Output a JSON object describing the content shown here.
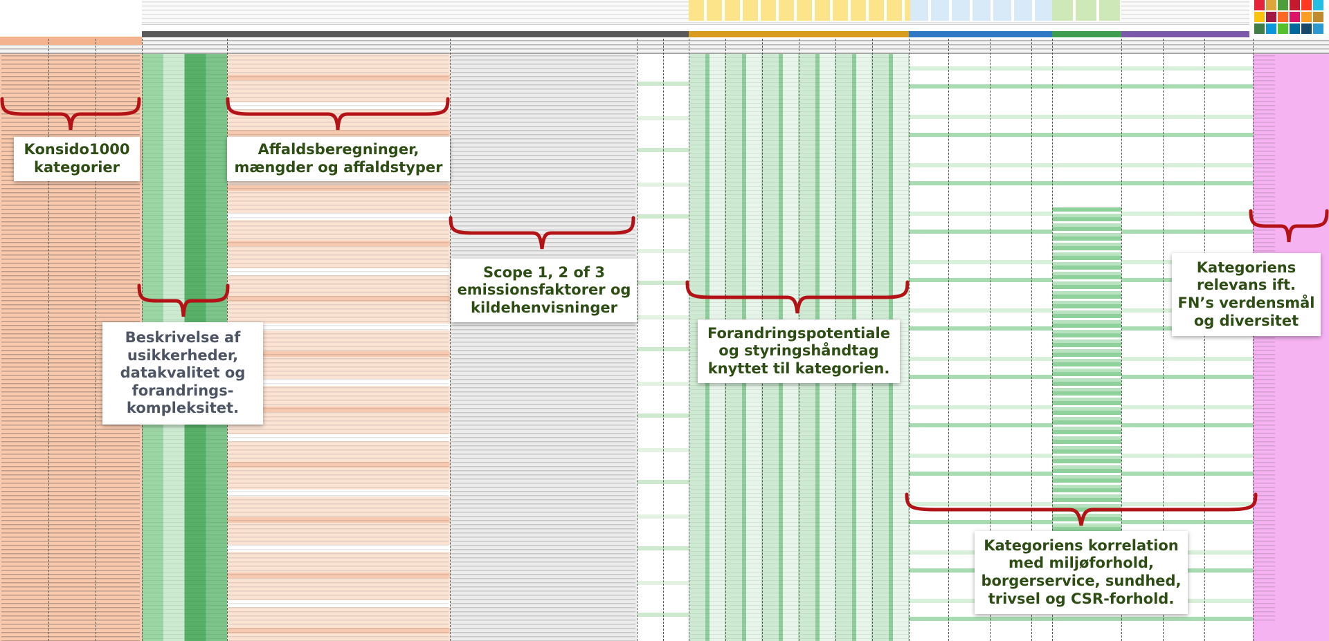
{
  "callouts": {
    "categories": "Konsido1000 kategorier",
    "waste": "Affaldsberegninger, mængder og affaldstyper",
    "uncertainty": "Beskrivelse af usikkerheder, datakvalitet og forandrings-kompleksitet.",
    "scope": "Scope 1, 2 of 3 emissionsfaktorer og kildehenvisninger",
    "change": "Forandringspotentiale og styringshåndtag knyttet til kategorien.",
    "sdg": "Kategoriens relevans ift. FN’s verdensmål og diversitet",
    "correlation": "Kategoriens korrelation med miljøforhold, borgerservice, sundhed, trivsel og CSR-forhold."
  },
  "colors": {
    "brace": "#b31217",
    "categories_bg": "#f9c9ae",
    "uncertainty_green": "#5cb36c",
    "waste_bg": "#fbe3d4",
    "scope_bg": "#ececec",
    "change_header": "#d89b1e",
    "correlation_header": "#2f79c4",
    "csr_header": "#3e9d4f",
    "sdg_bg": "#f6b3f2",
    "callout_green_text": "#2d4d14",
    "callout_slate_text": "#4d5564"
  },
  "icons": [
    "brace-down-icon",
    "sdg-goal-icons"
  ]
}
